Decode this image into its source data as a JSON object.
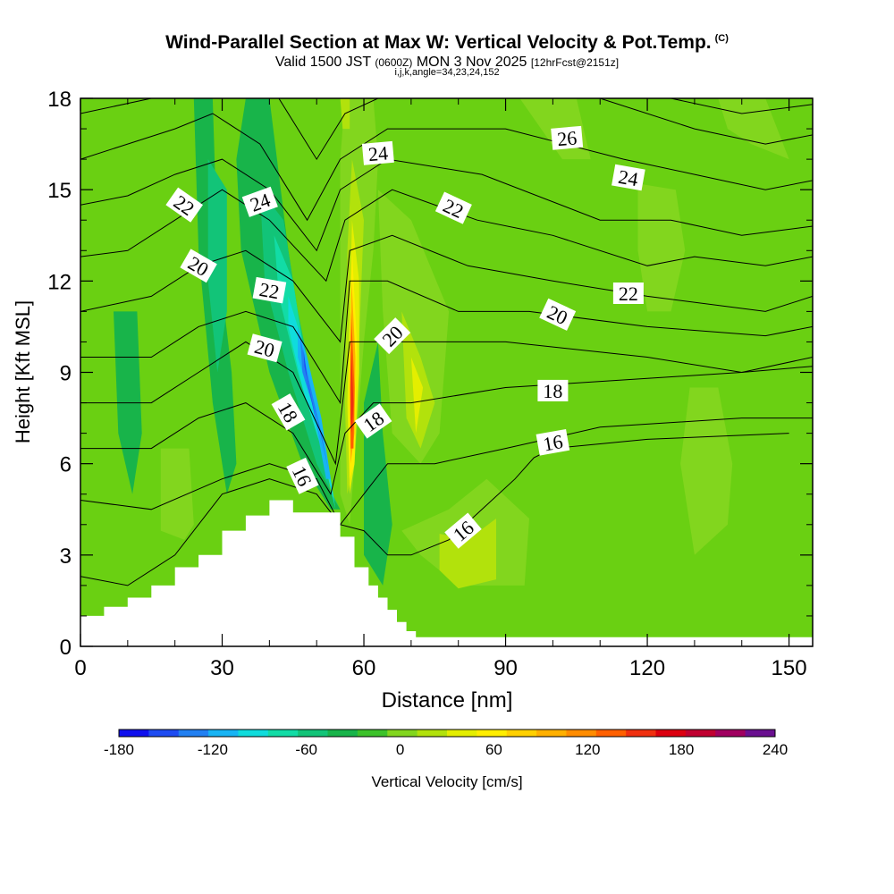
{
  "header": {
    "title": "Wind-Parallel Section at Max W: Vertical Velocity & Pot.Temp.",
    "copyright": "(C)",
    "valid_prefix": "Valid 1500 JST",
    "valid_utc": "(0600Z)",
    "valid_date": "MON 3 Nov 2025",
    "forecast": "[12hrFcst@2151z]",
    "grid_info": "i,j,k,angle=34,23,24,152"
  },
  "chart_data": {
    "type": "heatmap",
    "xlabel": "Distance [nm]",
    "ylabel": "Height [Kft MSL]",
    "xlim": [
      0,
      155
    ],
    "ylim": [
      0,
      18
    ],
    "x_ticks": [
      "0",
      "30",
      "60",
      "90",
      "120",
      "150"
    ],
    "y_ticks": [
      "0",
      "3",
      "6",
      "9",
      "12",
      "15",
      "18"
    ],
    "colorbar": {
      "label": "Vertical Velocity [cm/s]",
      "range": [
        -180,
        240
      ],
      "step": 20,
      "tick_labels": [
        "-180",
        "-120",
        "-60",
        "0",
        "60",
        "120",
        "180",
        "240"
      ],
      "colors": [
        "#1010ee",
        "#1e4cf2",
        "#2280f2",
        "#18b4f4",
        "#10dcdc",
        "#12dca6",
        "#12c478",
        "#18b44a",
        "#3cc22a",
        "#82d61e",
        "#b2e20c",
        "#e4ee00",
        "#ffee00",
        "#ffd000",
        "#ffb000",
        "#ff8c00",
        "#ff6000",
        "#f03010",
        "#dc0010",
        "#c00030",
        "#a00060",
        "#6a1090"
      ]
    },
    "contour_labels": [
      {
        "text": "22",
        "x": 22,
        "y": 14.5,
        "angle": 35
      },
      {
        "text": "24",
        "x": 38,
        "y": 14.6,
        "angle": -20
      },
      {
        "text": "20",
        "x": 25,
        "y": 12.5,
        "angle": 30
      },
      {
        "text": "22",
        "x": 40,
        "y": 11.7,
        "angle": 10
      },
      {
        "text": "20",
        "x": 39,
        "y": 9.8,
        "angle": 15
      },
      {
        "text": "18",
        "x": 44,
        "y": 7.7,
        "angle": 60
      },
      {
        "text": "16",
        "x": 47,
        "y": 5.6,
        "angle": 65
      },
      {
        "text": "24",
        "x": 63,
        "y": 16.2,
        "angle": -5
      },
      {
        "text": "22",
        "x": 79,
        "y": 14.4,
        "angle": 25
      },
      {
        "text": "20",
        "x": 66,
        "y": 10.2,
        "angle": -45
      },
      {
        "text": "18",
        "x": 62,
        "y": 7.4,
        "angle": -35
      },
      {
        "text": "16",
        "x": 81,
        "y": 3.8,
        "angle": -40
      },
      {
        "text": "26",
        "x": 103,
        "y": 16.7,
        "angle": -5
      },
      {
        "text": "24",
        "x": 116,
        "y": 15.4,
        "angle": 10
      },
      {
        "text": "22",
        "x": 116,
        "y": 11.6,
        "angle": 0
      },
      {
        "text": "20",
        "x": 101,
        "y": 10.9,
        "angle": 25
      },
      {
        "text": "18",
        "x": 100,
        "y": 8.4,
        "angle": 0
      },
      {
        "text": "16",
        "x": 100,
        "y": 6.7,
        "angle": -10
      }
    ]
  }
}
